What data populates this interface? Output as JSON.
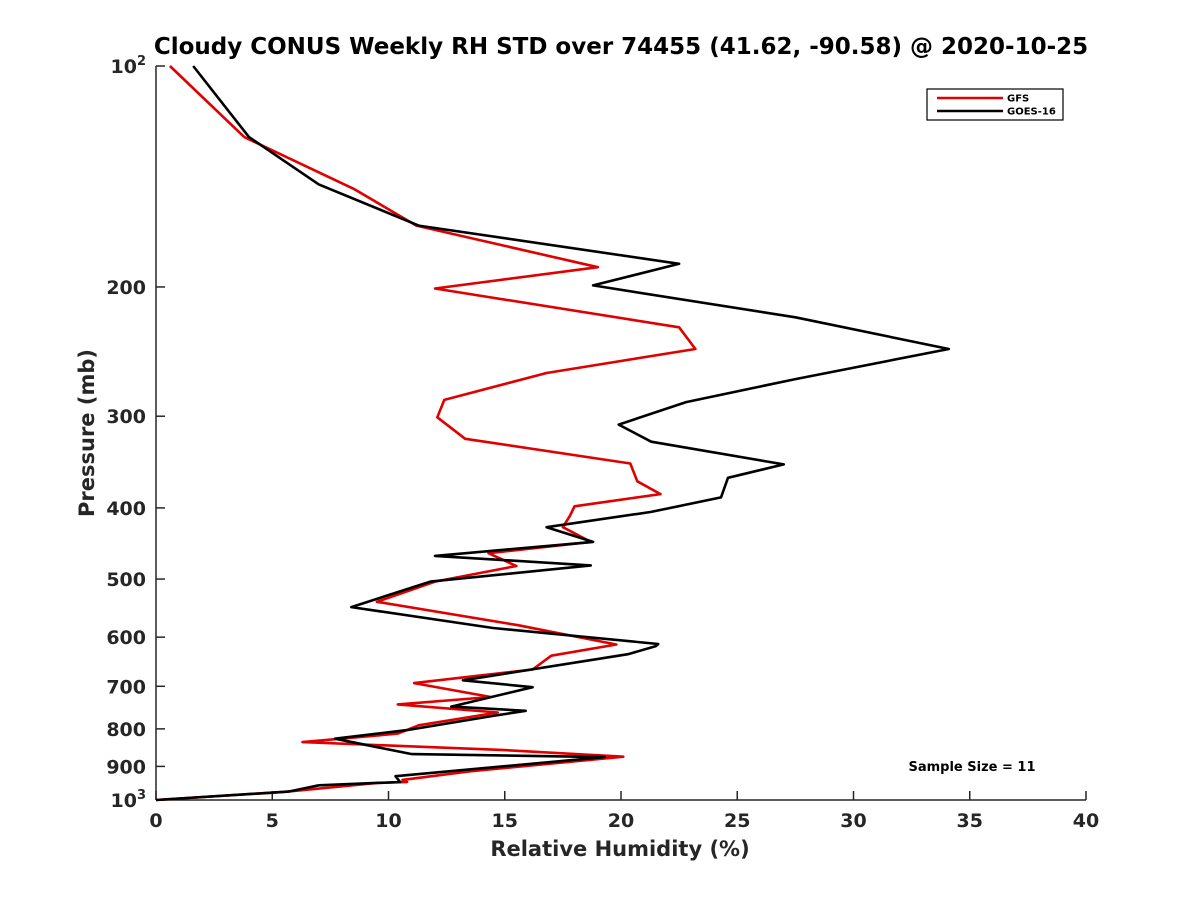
{
  "chart_data": {
    "type": "line",
    "title": "Cloudy CONUS Weekly RH STD over 74455 (41.62, -90.58) @ 2020-10-25",
    "xlabel": "Relative Humidity (%)",
    "ylabel": "Pressure (mb)",
    "xlim": [
      0,
      40
    ],
    "ylim": [
      100,
      1000
    ],
    "y_scale": "log",
    "y_reversed": true,
    "x_ticks": [
      "0",
      "5",
      "10",
      "15",
      "20",
      "25",
      "30",
      "35",
      "40"
    ],
    "y_ticks": [
      {
        "value": 100,
        "base": "10",
        "exp": "2",
        "label": ""
      },
      {
        "value": 200,
        "label": "200"
      },
      {
        "value": 300,
        "label": "300"
      },
      {
        "value": 400,
        "label": "400"
      },
      {
        "value": 500,
        "label": "500"
      },
      {
        "value": 600,
        "label": "600"
      },
      {
        "value": 700,
        "label": "700"
      },
      {
        "value": 800,
        "label": "800"
      },
      {
        "value": 900,
        "label": "900"
      },
      {
        "value": 1000,
        "base": "10",
        "exp": "3",
        "label": ""
      }
    ],
    "legend_position": "top-right",
    "annotation": "Sample Size = 11",
    "series": [
      {
        "name": "GFS",
        "color": "#e00000",
        "points": [
          [
            0.6,
            100
          ],
          [
            3.8,
            125
          ],
          [
            8.5,
            147
          ],
          [
            11.2,
            165
          ],
          [
            19.0,
            188
          ],
          [
            12.0,
            201
          ],
          [
            22.5,
            227
          ],
          [
            23.2,
            243
          ],
          [
            16.8,
            262
          ],
          [
            12.4,
            285
          ],
          [
            12.1,
            301
          ],
          [
            13.3,
            322
          ],
          [
            20.4,
            348
          ],
          [
            20.7,
            368
          ],
          [
            21.7,
            383
          ],
          [
            18.0,
            398
          ],
          [
            17.8,
            410
          ],
          [
            17.5,
            425
          ],
          [
            18.7,
            445
          ],
          [
            14.3,
            461
          ],
          [
            15.5,
            480
          ],
          [
            12.0,
            504
          ],
          [
            9.5,
            537
          ],
          [
            15.6,
            578
          ],
          [
            17.0,
            590
          ],
          [
            19.8,
            614
          ],
          [
            17.0,
            636
          ],
          [
            16.2,
            664
          ],
          [
            11.1,
            693
          ],
          [
            14.4,
            724
          ],
          [
            10.4,
            741
          ],
          [
            14.7,
            760
          ],
          [
            11.3,
            791
          ],
          [
            10.4,
            812
          ],
          [
            6.3,
            834
          ],
          [
            15.0,
            855
          ],
          [
            20.1,
            873
          ],
          [
            13.5,
            914
          ],
          [
            10.6,
            939
          ],
          [
            10.8,
            945
          ],
          [
            9.5,
            948
          ],
          [
            5.5,
            975
          ],
          [
            0.0,
            1000
          ]
        ]
      },
      {
        "name": "GOES-16",
        "color": "#000000",
        "points": [
          [
            1.6,
            100
          ],
          [
            4.0,
            125
          ],
          [
            7.0,
            145
          ],
          [
            11.3,
            165
          ],
          [
            22.5,
            186
          ],
          [
            18.8,
            199
          ],
          [
            27.5,
            220
          ],
          [
            34.1,
            243
          ],
          [
            27.5,
            267
          ],
          [
            22.8,
            287
          ],
          [
            19.9,
            308
          ],
          [
            21.3,
            325
          ],
          [
            27.0,
            349
          ],
          [
            24.6,
            364
          ],
          [
            24.3,
            387
          ],
          [
            21.3,
            405
          ],
          [
            16.8,
            425
          ],
          [
            18.8,
            445
          ],
          [
            12.0,
            465
          ],
          [
            18.7,
            479
          ],
          [
            11.8,
            504
          ],
          [
            8.4,
            546
          ],
          [
            14.5,
            583
          ],
          [
            21.6,
            613
          ],
          [
            21.5,
            617
          ],
          [
            20.3,
            633
          ],
          [
            13.2,
            687
          ],
          [
            16.2,
            702
          ],
          [
            12.7,
            746
          ],
          [
            15.9,
            756
          ],
          [
            14.5,
            768
          ],
          [
            10.8,
            803
          ],
          [
            7.7,
            825
          ],
          [
            11.0,
            866
          ],
          [
            19.3,
            874
          ],
          [
            10.3,
            928
          ],
          [
            10.5,
            945
          ],
          [
            7.0,
            955
          ],
          [
            5.7,
            974
          ],
          [
            0.0,
            1000
          ]
        ]
      }
    ]
  }
}
